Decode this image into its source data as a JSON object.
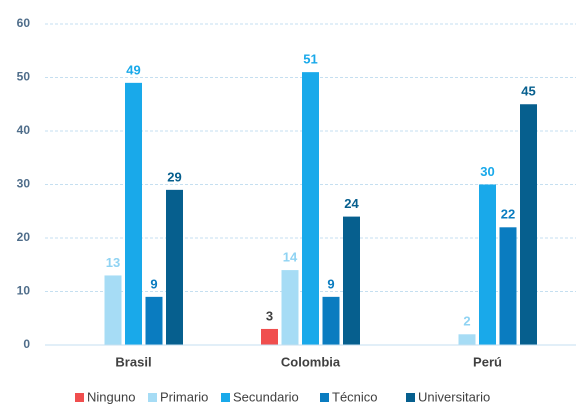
{
  "chart_data": {
    "type": "bar",
    "categories": [
      "Brasil",
      "Colombia",
      "Perú"
    ],
    "series": [
      {
        "name": "Ninguno",
        "color": "#f04e4e",
        "label_color": "#404040",
        "values": [
          null,
          3,
          null
        ]
      },
      {
        "name": "Primario",
        "color": "#a6dcf5",
        "label_color": "#8fd3f3",
        "values": [
          13,
          14,
          2
        ]
      },
      {
        "name": "Secundario",
        "color": "#19a9ea",
        "label_color": "#19a9ea",
        "values": [
          49,
          51,
          30
        ]
      },
      {
        "name": "Técnico",
        "color": "#0a7cc0",
        "label_color": "#0a7cc0",
        "values": [
          9,
          9,
          22
        ]
      },
      {
        "name": "Universitario",
        "color": "#065f8e",
        "label_color": "#065f8e",
        "values": [
          29,
          24,
          45
        ]
      }
    ],
    "ylim": [
      0,
      60
    ],
    "yticks": [
      0,
      10,
      20,
      30,
      40,
      50,
      60
    ],
    "grid": true
  }
}
